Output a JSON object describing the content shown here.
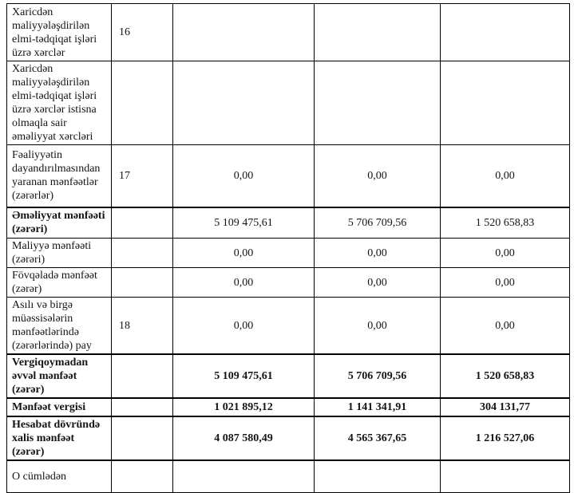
{
  "document": {
    "kind": "profit-and-loss-statement-fragment",
    "language": "Azerbaijani",
    "text_color": "#151515",
    "border_color": "#000000",
    "background_color": "#ffffff"
  },
  "table": {
    "columns": [
      "row-label",
      "note-number",
      "value-1",
      "value-2",
      "value-3"
    ],
    "rows": [
      {
        "label": "Xaricdən maliyyələşdirilən elmi-tədqiqat işləri üzrə xərclər",
        "note": "16",
        "values": [
          "",
          "",
          ""
        ]
      },
      {
        "label": "Xaricdən maliyyələşdirilən elmi-tədqiqat işləri üzrə xərclər istisna olmaqla sair əməliyyat xərcləri",
        "note": "",
        "values": [
          "",
          "",
          ""
        ]
      },
      {
        "label": "Fəaliyyətin dayandırılmasından yaranan mənfəətlər (zərərlər)",
        "note": "17",
        "values": [
          "0,00",
          "0,00",
          "0,00"
        ]
      },
      {
        "label": "Əməliyyat mənfəəti (zərəri)",
        "note": "",
        "values": [
          "5 109 475,61",
          "5 706 709,56",
          "1 520 658,83"
        ]
      },
      {
        "label": "Maliyyə mənfəəti (zərəri)",
        "note": "",
        "values": [
          "0,00",
          "0,00",
          "0,00"
        ]
      },
      {
        "label": "Fövqəladə mənfəət (zərər)",
        "note": "",
        "values": [
          "0,00",
          "0,00",
          "0,00"
        ]
      },
      {
        "label": "Asılı və birgə müəssisələrin mənfəətlərində (zərərlərində) pay",
        "note": "18",
        "values": [
          "0,00",
          "0,00",
          "0,00"
        ]
      },
      {
        "label": "Vergiqoymadan əvvəl mənfəət (zərər)",
        "note": "",
        "values": [
          "5 109 475,61",
          "5 706 709,56",
          "1 520 658,83"
        ]
      },
      {
        "label": "Mənfəət vergisi",
        "note": "",
        "values": [
          "1 021 895,12",
          "1 141 341,91",
          "304 131,77"
        ]
      },
      {
        "label": "Hesabat dövründə xalis mənfəət (zərər)",
        "note": "",
        "values": [
          "4 087 580,49",
          "4 565 367,65",
          "1 216 527,06"
        ]
      },
      {
        "label": "O cümlədən",
        "note": "",
        "values": [
          "",
          "",
          ""
        ]
      }
    ]
  }
}
